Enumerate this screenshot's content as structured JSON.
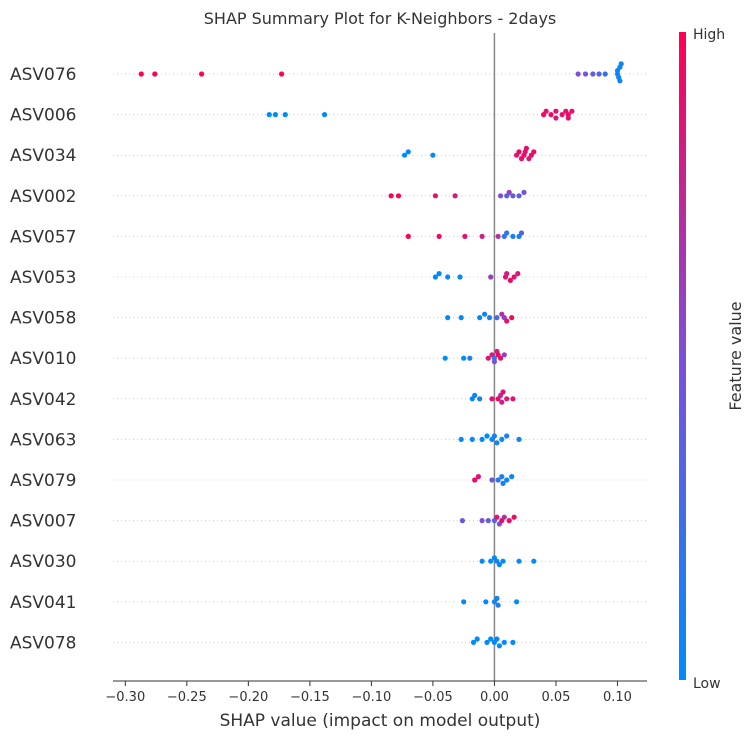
{
  "chart_data": {
    "type": "scatter",
    "title": "SHAP Summary Plot for K-Neighbors - 2days",
    "xlabel": "SHAP value (impact on model output)",
    "xlim": [
      -0.31,
      0.124
    ],
    "xticks": [
      -0.3,
      -0.25,
      -0.2,
      -0.15,
      -0.1,
      -0.05,
      0.0,
      0.05,
      0.1
    ],
    "xtick_labels": [
      "−0.30",
      "−0.25",
      "−0.20",
      "−0.15",
      "−0.10",
      "−0.05",
      "0.00",
      "0.05",
      "0.10"
    ],
    "grid": false,
    "colorbar": {
      "label": "Feature value",
      "high_label": "High",
      "low_label": "Low",
      "low_color": "#008bfb",
      "high_color": "#ff0052"
    },
    "features": [
      {
        "name": "ASV076",
        "points": [
          [
            -0.287,
            1
          ],
          [
            -0.276,
            1
          ],
          [
            -0.238,
            1
          ],
          [
            -0.173,
            1
          ],
          [
            0.068,
            0.5
          ],
          [
            0.074,
            0.45
          ],
          [
            0.08,
            0.4
          ],
          [
            0.085,
            0.3
          ],
          [
            0.09,
            0.2
          ],
          [
            0.1,
            0.05
          ],
          [
            0.101,
            0.05
          ],
          [
            0.102,
            0.05
          ],
          [
            0.103,
            0.05
          ],
          [
            0.1,
            0.05
          ],
          [
            0.102,
            0.05
          ]
        ]
      },
      {
        "name": "ASV006",
        "points": [
          [
            -0.178,
            0
          ],
          [
            -0.183,
            0
          ],
          [
            -0.17,
            0
          ],
          [
            -0.138,
            0
          ],
          [
            0.04,
            0.95
          ],
          [
            0.042,
            0.9
          ],
          [
            0.046,
            0.95
          ],
          [
            0.05,
            0.9
          ],
          [
            0.055,
            0.9
          ],
          [
            0.06,
            0.95
          ],
          [
            0.063,
            0.9
          ],
          [
            0.05,
            0.85
          ],
          [
            0.058,
            0.9
          ],
          [
            0.06,
            0.9
          ]
        ]
      },
      {
        "name": "ASV034",
        "points": [
          [
            -0.07,
            0
          ],
          [
            -0.073,
            0
          ],
          [
            -0.05,
            0
          ],
          [
            0.02,
            0.95
          ],
          [
            0.022,
            0.9
          ],
          [
            0.024,
            0.95
          ],
          [
            0.026,
            0.9
          ],
          [
            0.028,
            0.85
          ],
          [
            0.03,
            0.9
          ],
          [
            0.032,
            0.95
          ],
          [
            0.018,
            0.9
          ],
          [
            0.025,
            0.9
          ]
        ]
      },
      {
        "name": "ASV002",
        "points": [
          [
            -0.084,
            1
          ],
          [
            -0.078,
            1
          ],
          [
            -0.048,
            0.9
          ],
          [
            -0.032,
            0.85
          ],
          [
            0.005,
            0.5
          ],
          [
            0.01,
            0.3
          ],
          [
            0.012,
            0.6
          ],
          [
            0.015,
            0.4
          ],
          [
            0.02,
            0.35
          ],
          [
            0.024,
            0.45
          ]
        ]
      },
      {
        "name": "ASV057",
        "points": [
          [
            -0.07,
            1
          ],
          [
            -0.045,
            0.95
          ],
          [
            -0.024,
            0.9
          ],
          [
            -0.01,
            0.8
          ],
          [
            0.003,
            0.7
          ],
          [
            0.01,
            0.2
          ],
          [
            0.015,
            0.1
          ],
          [
            0.02,
            0.1
          ],
          [
            0.022,
            0.3
          ],
          [
            0.008,
            0.2
          ]
        ]
      },
      {
        "name": "ASV053",
        "points": [
          [
            -0.048,
            0
          ],
          [
            -0.045,
            0
          ],
          [
            -0.038,
            0
          ],
          [
            -0.028,
            0
          ],
          [
            -0.003,
            0.6
          ],
          [
            0.01,
            0.85
          ],
          [
            0.013,
            0.95
          ],
          [
            0.016,
            0.9
          ],
          [
            0.019,
            0.85
          ],
          [
            0.009,
            0.9
          ]
        ]
      },
      {
        "name": "ASV058",
        "points": [
          [
            -0.038,
            0
          ],
          [
            -0.027,
            0
          ],
          [
            -0.012,
            0
          ],
          [
            -0.008,
            0.05
          ],
          [
            -0.004,
            0.1
          ],
          [
            0.002,
            0.3
          ],
          [
            0.006,
            0.7
          ],
          [
            0.01,
            0.9
          ],
          [
            0.014,
            0.95
          ],
          [
            0.008,
            0.6
          ]
        ]
      },
      {
        "name": "ASV010",
        "points": [
          [
            -0.04,
            0
          ],
          [
            -0.025,
            0
          ],
          [
            -0.02,
            0.1
          ],
          [
            -0.005,
            0.9
          ],
          [
            -0.002,
            0.85
          ],
          [
            0.002,
            0.8
          ],
          [
            0.005,
            0.9
          ],
          [
            0.008,
            0.6
          ],
          [
            0.0,
            0.1
          ],
          [
            0.0,
            0.5
          ],
          [
            0.003,
            0.95
          ]
        ]
      },
      {
        "name": "ASV042",
        "points": [
          [
            -0.018,
            0
          ],
          [
            -0.016,
            0.05
          ],
          [
            -0.012,
            0.1
          ],
          [
            -0.002,
            0.9
          ],
          [
            0.003,
            0.95
          ],
          [
            0.006,
            0.8
          ],
          [
            0.01,
            0.85
          ],
          [
            0.015,
            0.9
          ],
          [
            0.005,
            0.7
          ],
          [
            0.007,
            0.9
          ]
        ]
      },
      {
        "name": "ASV063",
        "points": [
          [
            -0.027,
            0
          ],
          [
            -0.018,
            0
          ],
          [
            -0.01,
            0
          ],
          [
            -0.006,
            0
          ],
          [
            -0.002,
            0
          ],
          [
            0.002,
            0.1
          ],
          [
            0.006,
            0
          ],
          [
            0.01,
            0.1
          ],
          [
            0.02,
            0.05
          ],
          [
            0.0,
            0.1
          ]
        ]
      },
      {
        "name": "ASV079",
        "points": [
          [
            -0.016,
            0.95
          ],
          [
            -0.013,
            0.9
          ],
          [
            -0.002,
            0.4
          ],
          [
            0.003,
            0.2
          ],
          [
            0.006,
            0.1
          ],
          [
            0.01,
            0.05
          ],
          [
            0.014,
            0.05
          ],
          [
            0.007,
            0.1
          ]
        ]
      },
      {
        "name": "ASV007",
        "points": [
          [
            -0.026,
            0.4
          ],
          [
            -0.01,
            0.5
          ],
          [
            -0.005,
            0.4
          ],
          [
            0.0,
            0.3
          ],
          [
            0.004,
            0.5
          ],
          [
            0.008,
            0.7
          ],
          [
            0.012,
            0.9
          ],
          [
            0.016,
            0.95
          ],
          [
            0.002,
            0.9
          ],
          [
            0.006,
            0.9
          ]
        ]
      },
      {
        "name": "ASV030",
        "points": [
          [
            -0.01,
            0
          ],
          [
            -0.003,
            0
          ],
          [
            0.0,
            0
          ],
          [
            0.004,
            0
          ],
          [
            0.007,
            0
          ],
          [
            0.02,
            0
          ],
          [
            0.032,
            0
          ],
          [
            0.002,
            0.1
          ]
        ]
      },
      {
        "name": "ASV041",
        "points": [
          [
            -0.025,
            0
          ],
          [
            -0.007,
            0
          ],
          [
            0.0,
            0.1
          ],
          [
            0.003,
            0.1
          ],
          [
            0.018,
            0
          ],
          [
            0.002,
            0.05
          ]
        ]
      },
      {
        "name": "ASV078",
        "points": [
          [
            -0.017,
            0
          ],
          [
            -0.014,
            0
          ],
          [
            -0.006,
            0
          ],
          [
            -0.003,
            0
          ],
          [
            0.0,
            0
          ],
          [
            0.004,
            0
          ],
          [
            0.008,
            0
          ],
          [
            0.015,
            0
          ],
          [
            0.002,
            0.05
          ]
        ]
      }
    ]
  }
}
